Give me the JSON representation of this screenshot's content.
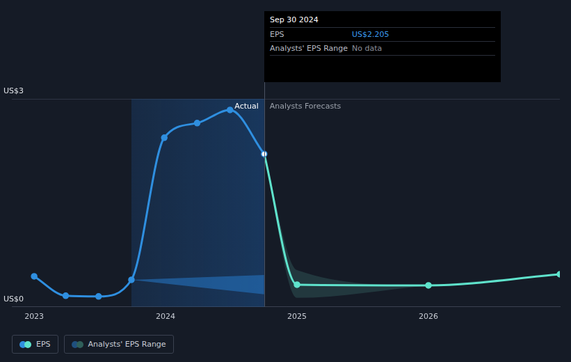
{
  "chart_data": {
    "type": "line",
    "xlim": [
      2022.83,
      2027.0
    ],
    "xticks": [
      2023,
      2024,
      2025,
      2026
    ],
    "ylim": [
      0,
      3
    ],
    "yticks": [
      {
        "value": 0,
        "label": "US$0"
      },
      {
        "value": 3,
        "label": "US$3"
      }
    ],
    "grid": true,
    "series": [
      {
        "name": "Actual",
        "color": "#2f8fe0",
        "marker": "circle",
        "line_style": "solid",
        "x": [
          2023.0,
          2023.24,
          2023.49,
          2023.74,
          2023.99,
          2024.24,
          2024.49,
          2024.75
        ],
        "values": [
          0.44,
          0.16,
          0.15,
          0.39,
          2.44,
          2.65,
          2.84,
          2.205
        ]
      },
      {
        "name": "Analysts Forecasts",
        "color": "#5fe3cc",
        "marker": "circle",
        "line_style": "solid",
        "x": [
          2024.75,
          2025.0,
          2026.0,
          2027.0
        ],
        "values": [
          2.205,
          0.32,
          0.31,
          0.47
        ]
      }
    ],
    "ranges": [
      {
        "color": "rgba(38,120,200,0.55)",
        "x": [
          2023.74,
          2024.75
        ],
        "low": [
          0.39,
          0.18
        ],
        "high": [
          0.39,
          0.46
        ]
      },
      {
        "color": "rgba(80,160,150,0.22)",
        "x": [
          2024.75,
          2025.0,
          2026.0,
          2027.0
        ],
        "low": [
          2.205,
          0.13,
          0.31,
          0.47
        ],
        "high": [
          2.205,
          0.53,
          0.31,
          0.47
        ]
      }
    ],
    "shaded_x": [
      2023.74,
      2024.75
    ],
    "divider_x": 2024.75,
    "tooltip": {
      "title": "Sep 30 2024",
      "rows": [
        {
          "label": "EPS",
          "value": "US$2.205",
          "color": "#3b9cf0"
        },
        {
          "label": "Analysts' EPS Range",
          "value": "No data",
          "color": "#8a8f99"
        }
      ]
    },
    "legend": "bottom left",
    "legend_items": [
      {
        "label": "EPS",
        "colors": [
          "#2f8fe0",
          "#5fe3cc"
        ]
      },
      {
        "label": "Analysts' EPS Range",
        "colors": [
          "#1f4f7e",
          "#2f5f5a"
        ]
      }
    ]
  }
}
